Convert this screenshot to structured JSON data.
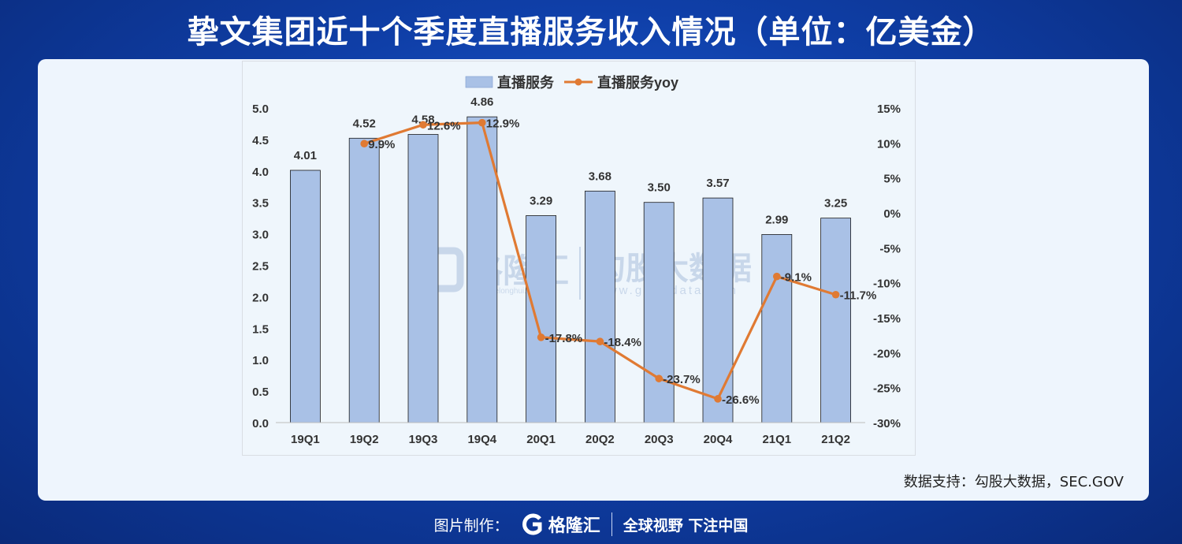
{
  "header": {
    "title": "挚文集团近十个季度直播服务收入情况（单位：亿美金）"
  },
  "source": "数据支持：勾股大数据，SEC.GOV",
  "watermark": {
    "brand_left": "格隆汇",
    "brand_left_url": "www.gelonghui.com",
    "brand_right": "勾股大数据",
    "brand_right_url": "www.gogudata.com"
  },
  "footer": {
    "maker": "图片制作：",
    "logo_text": "格隆汇",
    "logo_url": "www.gelonghui.com",
    "slogan": "全球视野 下注中国"
  },
  "colors": {
    "bar": "#a9c1e6",
    "line": "#e07a33"
  },
  "chart_data": {
    "type": "bar",
    "categories": [
      "19Q1",
      "19Q2",
      "19Q3",
      "19Q4",
      "20Q1",
      "20Q2",
      "20Q3",
      "20Q4",
      "21Q1",
      "21Q2"
    ],
    "series": [
      {
        "name": "直播服务",
        "type": "bar",
        "axis": "left",
        "values": [
          4.01,
          4.52,
          4.58,
          4.86,
          3.29,
          3.68,
          3.5,
          3.57,
          2.99,
          3.25
        ],
        "labels": [
          "4.01",
          "4.52",
          "4.58",
          "4.86",
          "3.29",
          "3.68",
          "3.50",
          "3.57",
          "2.99",
          "3.25"
        ]
      },
      {
        "name": "直播服务yoy",
        "type": "line",
        "axis": "right",
        "values": [
          null,
          9.9,
          12.6,
          12.9,
          -17.8,
          -18.4,
          -23.7,
          -26.6,
          -9.1,
          -11.7
        ],
        "labels": [
          "",
          "9.9%",
          "12.6%",
          "12.9%",
          "-17.8%",
          "-18.4%",
          "-23.7%",
          "-26.6%",
          "-9.1%",
          "-11.7%"
        ]
      }
    ],
    "y_left": {
      "min": 0,
      "max": 5,
      "ticks": [
        "0.0",
        "0.5",
        "1.0",
        "1.5",
        "2.0",
        "2.5",
        "3.0",
        "3.5",
        "4.0",
        "4.5",
        "5.0"
      ]
    },
    "y_right": {
      "min": -30,
      "max": 15,
      "ticks": [
        "-30%",
        "-25%",
        "-20%",
        "-15%",
        "-10%",
        "-5%",
        "0%",
        "5%",
        "10%",
        "15%"
      ]
    },
    "legend": "top",
    "grid": false
  }
}
